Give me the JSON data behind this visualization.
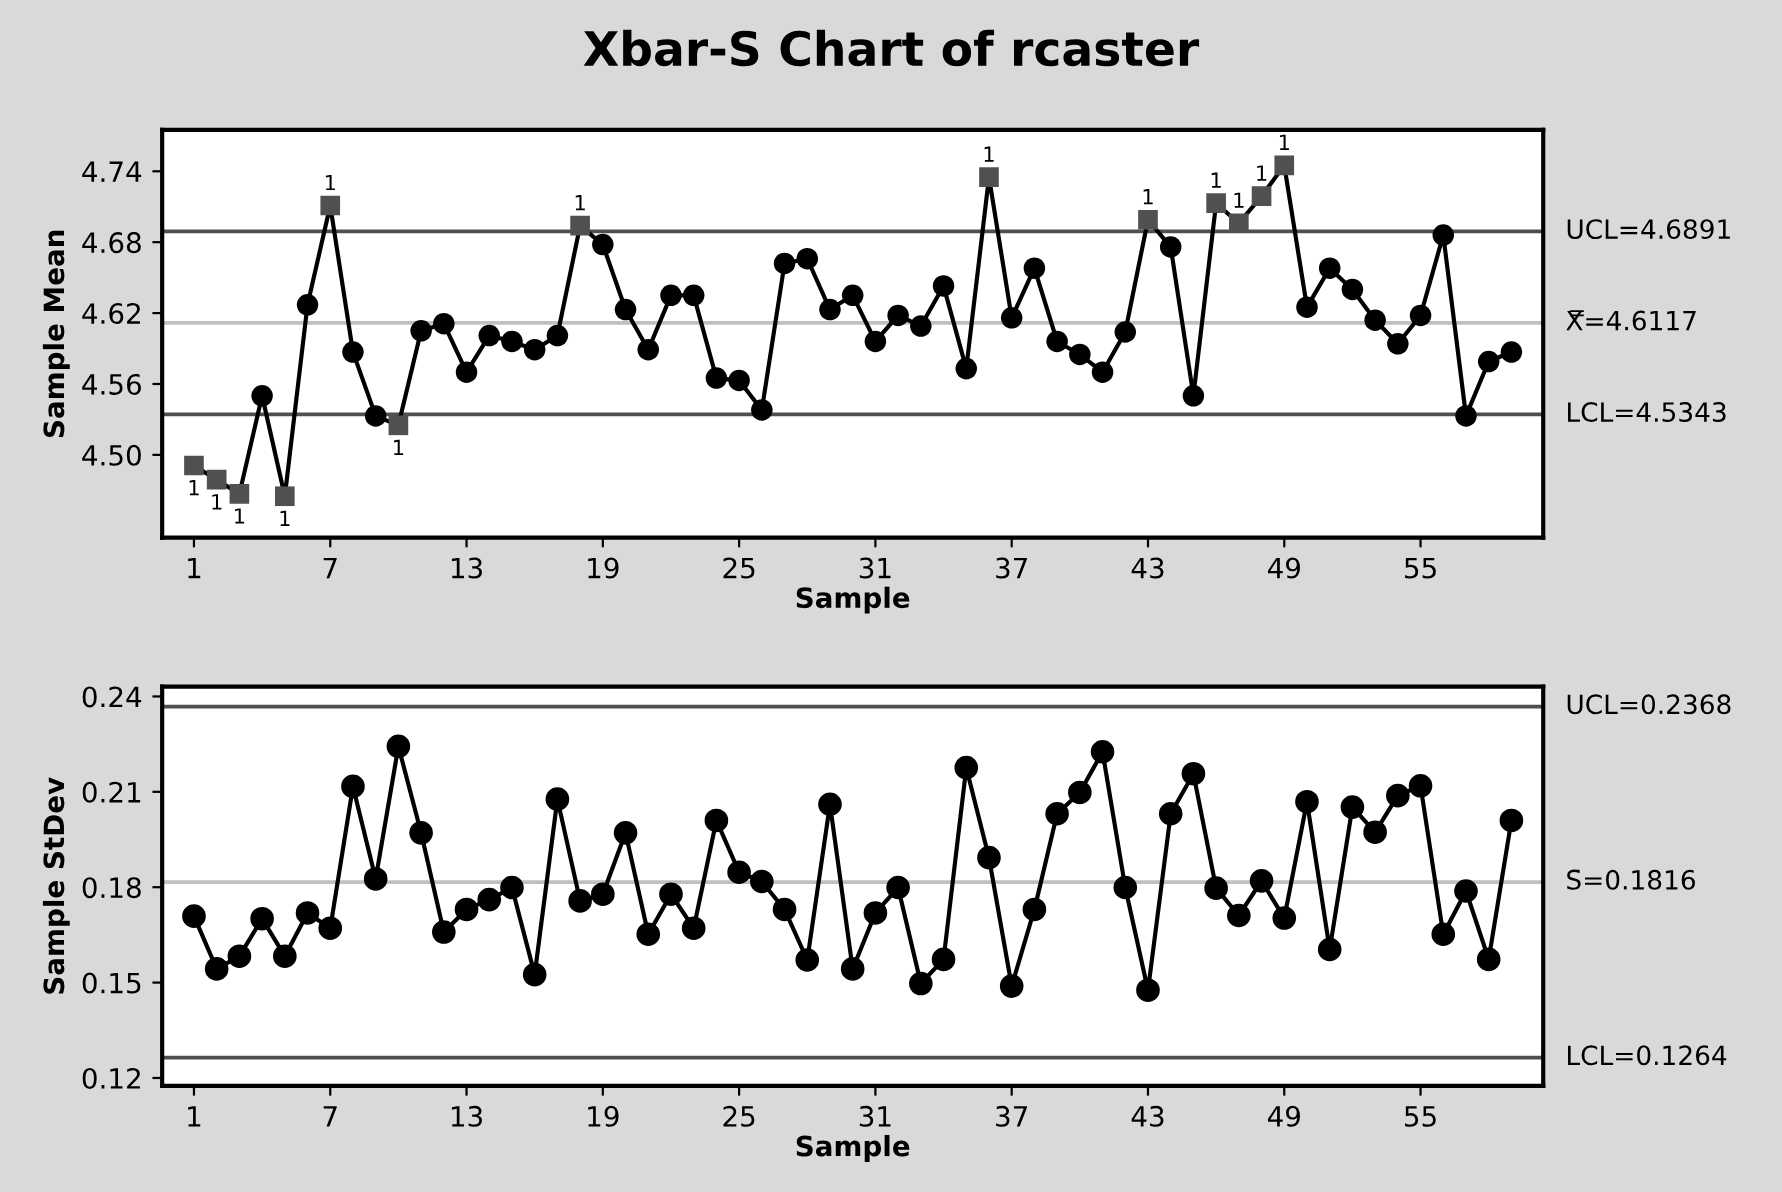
{
  "chart_data": [
    {
      "type": "line",
      "title": "Xbar-S Chart of rcaster",
      "xlabel": "Sample",
      "ylabel": "Sample Mean",
      "x": [
        1,
        2,
        3,
        4,
        5,
        6,
        7,
        8,
        9,
        10,
        11,
        12,
        13,
        14,
        15,
        16,
        17,
        18,
        19,
        20,
        21,
        22,
        23,
        24,
        25,
        26,
        27,
        28,
        29,
        30,
        31,
        32,
        33,
        34,
        35,
        36,
        37,
        38,
        39,
        40,
        41,
        42,
        43,
        44,
        45,
        46,
        47,
        48,
        49,
        50,
        51,
        52,
        53,
        54,
        55,
        56,
        57,
        58,
        59
      ],
      "series": [
        {
          "marker": "none",
          "color": "#000000",
          "values": [
            4.491,
            4.479,
            4.467,
            4.55,
            4.465,
            4.627,
            4.711,
            4.587,
            4.533,
            4.525,
            4.605,
            4.611,
            4.57,
            4.601,
            4.596,
            4.589,
            4.601,
            4.694,
            4.678,
            4.623,
            4.589,
            4.635,
            4.635,
            4.565,
            4.563,
            4.538,
            4.662,
            4.666,
            4.623,
            4.635,
            4.596,
            4.618,
            4.609,
            4.643,
            4.573,
            4.735,
            4.616,
            4.658,
            4.596,
            4.585,
            4.57,
            4.604,
            4.699,
            4.676,
            4.55,
            4.713,
            4.696,
            4.719,
            4.745,
            4.625,
            4.658,
            4.64,
            4.614,
            4.594,
            4.618,
            4.686,
            4.533,
            4.579,
            4.587
          ]
        },
        {
          "type": "scatter",
          "marker": "circle",
          "color": "#000000",
          "values": [
            null,
            null,
            null,
            4.55,
            null,
            4.627,
            null,
            4.587,
            4.533,
            null,
            4.605,
            4.611,
            4.57,
            4.601,
            4.596,
            4.589,
            4.601,
            null,
            4.678,
            4.623,
            4.589,
            4.635,
            4.635,
            4.565,
            4.563,
            4.538,
            4.662,
            4.666,
            4.623,
            4.635,
            4.596,
            4.618,
            4.609,
            4.643,
            4.573,
            null,
            4.616,
            4.658,
            4.596,
            4.585,
            4.57,
            4.604,
            null,
            4.676,
            4.55,
            null,
            null,
            null,
            null,
            4.625,
            4.658,
            4.64,
            4.614,
            4.594,
            4.618,
            4.686,
            4.533,
            4.579,
            4.587
          ]
        },
        {
          "type": "scatter",
          "marker": "square",
          "color": "#505050",
          "x": [
            1,
            2,
            3,
            5,
            7,
            10,
            18,
            36,
            43,
            46,
            47,
            48,
            49
          ],
          "values": [
            4.491,
            4.479,
            4.467,
            4.465,
            4.711,
            4.525,
            4.694,
            4.735,
            4.699,
            4.713,
            4.696,
            4.719,
            4.745
          ]
        }
      ],
      "ref_lines": [
        {
          "axis": "y",
          "value": 4.6891,
          "label": "UCL=4.6891",
          "color": "#505050"
        },
        {
          "axis": "y",
          "value": 4.6117,
          "label": "X̿=4.6117",
          "color": "#c0c0c0"
        },
        {
          "axis": "y",
          "value": 4.5343,
          "label": "LCL=4.5343",
          "color": "#505050"
        }
      ],
      "annotations": [
        {
          "text": "1",
          "x": 1,
          "y": 4.491
        },
        {
          "text": "1",
          "x": 2,
          "y": 4.479
        },
        {
          "text": "1",
          "x": 3,
          "y": 4.467
        },
        {
          "text": "1",
          "x": 5,
          "y": 4.465
        },
        {
          "text": "1",
          "x": 7,
          "y": 4.711
        },
        {
          "text": "1",
          "x": 10,
          "y": 4.525
        },
        {
          "text": "1",
          "x": 18,
          "y": 4.694
        },
        {
          "text": "1",
          "x": 36,
          "y": 4.735
        },
        {
          "text": "1",
          "x": 43,
          "y": 4.699
        },
        {
          "text": "1",
          "x": 46,
          "y": 4.713
        },
        {
          "text": "1",
          "x": 47,
          "y": 4.696
        },
        {
          "text": "1",
          "x": 48,
          "y": 4.719
        },
        {
          "text": "1",
          "x": 49,
          "y": 4.745
        }
      ],
      "xlim": [
        -0.4,
        60.4
      ],
      "xticks": [
        1,
        7,
        13,
        19,
        25,
        31,
        37,
        43,
        49,
        55
      ],
      "ylim": [
        4.43,
        4.775
      ],
      "yticks": [
        {
          "value": 4.5,
          "label": "4.50"
        },
        {
          "value": 4.56,
          "label": "4.56"
        },
        {
          "value": 4.62,
          "label": "4.62"
        },
        {
          "value": 4.68,
          "label": "4.68"
        },
        {
          "value": 4.74,
          "label": "4.74"
        }
      ],
      "grid": false,
      "legend": false,
      "line_style": "solid"
    },
    {
      "type": "line",
      "xlabel": "Sample",
      "ylabel": "Sample StDev",
      "x": [
        1,
        2,
        3,
        4,
        5,
        6,
        7,
        8,
        9,
        10,
        11,
        12,
        13,
        14,
        15,
        16,
        17,
        18,
        19,
        20,
        21,
        22,
        23,
        24,
        25,
        26,
        27,
        28,
        29,
        30,
        31,
        32,
        33,
        34,
        35,
        36,
        37,
        38,
        39,
        40,
        41,
        42,
        43,
        44,
        45,
        46,
        47,
        48,
        49,
        50,
        51,
        52,
        53,
        54,
        55,
        56,
        57,
        58,
        59
      ],
      "series": [
        {
          "marker": "circle",
          "color": "#000000",
          "values": [
            0.1709,
            0.1543,
            0.1583,
            0.1701,
            0.1583,
            0.1719,
            0.1671,
            0.2117,
            0.1826,
            0.2243,
            0.1971,
            0.1659,
            0.173,
            0.1761,
            0.1799,
            0.1525,
            0.2077,
            0.1757,
            0.1778,
            0.1971,
            0.1652,
            0.1778,
            0.1671,
            0.201,
            0.1847,
            0.1818,
            0.173,
            0.1571,
            0.2061,
            0.1543,
            0.1719,
            0.1799,
            0.1497,
            0.1573,
            0.2176,
            0.1893,
            0.1489,
            0.173,
            0.2031,
            0.2098,
            0.2226,
            0.1799,
            0.1476,
            0.2031,
            0.2157,
            0.1797,
            0.1711,
            0.182,
            0.1703,
            0.2069,
            0.1604,
            0.2052,
            0.1973,
            0.2088,
            0.2119,
            0.1652,
            0.1788,
            0.1573,
            0.201
          ]
        }
      ],
      "ref_lines": [
        {
          "axis": "y",
          "value": 0.2368,
          "label": "UCL=0.2368",
          "color": "#505050"
        },
        {
          "axis": "y",
          "value": 0.1816,
          "label": "S̄=0.1816",
          "color": "#c0c0c0"
        },
        {
          "axis": "y",
          "value": 0.1264,
          "label": "LCL=0.1264",
          "color": "#505050"
        }
      ],
      "xlim": [
        -0.4,
        60.4
      ],
      "xticks": [
        1,
        7,
        13,
        19,
        25,
        31,
        37,
        43,
        49,
        55
      ],
      "ylim": [
        0.1175,
        0.2431
      ],
      "yticks": [
        {
          "value": 0.12,
          "label": "0.12"
        },
        {
          "value": 0.15,
          "label": "0.15"
        },
        {
          "value": 0.18,
          "label": "0.18"
        },
        {
          "value": 0.21,
          "label": "0.21"
        },
        {
          "value": 0.24,
          "label": "0.24"
        }
      ],
      "grid": false,
      "legend": false,
      "line_style": "solid"
    }
  ]
}
